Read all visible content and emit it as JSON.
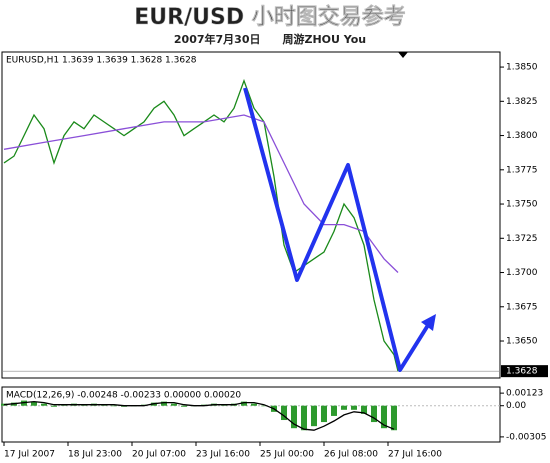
{
  "title": "EUR/USD 小时图交易参考",
  "subtitle": "2007年7月30日　　周游ZHOU You",
  "chart_data": [
    {
      "type": "line",
      "label": "EURUSD,H1  1.3639 1.3639 1.3628 1.3628",
      "current_price": 1.3628,
      "xlim": [
        -1,
        248
      ],
      "ylim": [
        1.3623,
        1.3861
      ],
      "xticks": [
        {
          "value": 0,
          "label": "17 Jul 2007"
        },
        {
          "value": 32,
          "label": "18 Jul 23:00"
        },
        {
          "value": 64,
          "label": "20 Jul 07:00"
        },
        {
          "value": 96,
          "label": "23 Jul 16:00"
        },
        {
          "value": 128,
          "label": "25 Jul 00:00"
        },
        {
          "value": 160,
          "label": "26 Jul 08:00"
        },
        {
          "value": 192,
          "label": "27 Jul 16:00"
        }
      ],
      "yticks": [
        {
          "value": 1.385,
          "label": "1.3850"
        },
        1.3825,
        {
          "value": 1.38,
          "label": "1.3800"
        },
        1.3775,
        {
          "value": 1.375,
          "label": "1.3750"
        },
        1.3725,
        {
          "value": 1.37,
          "label": "1.3700"
        },
        1.3675,
        {
          "value": 1.365,
          "label": "1.3650"
        }
      ],
      "series": [
        {
          "color": "#1a8a1a",
          "style": "line",
          "x": [
            0,
            5,
            10,
            15,
            20,
            25,
            30,
            35,
            40,
            45,
            50,
            55,
            60,
            65,
            70,
            75,
            80,
            85,
            90,
            95,
            100,
            105,
            110,
            115,
            120,
            125,
            130,
            135,
            140,
            145,
            150,
            155,
            160,
            165,
            170,
            175,
            180,
            185,
            190,
            195,
            197
          ],
          "values": [
            1.378,
            1.3785,
            1.38,
            1.3815,
            1.3805,
            1.378,
            1.38,
            1.381,
            1.3805,
            1.3815,
            1.381,
            1.3805,
            1.38,
            1.3805,
            1.381,
            1.382,
            1.3825,
            1.3815,
            1.38,
            1.3805,
            1.381,
            1.3815,
            1.381,
            1.382,
            1.384,
            1.382,
            1.381,
            1.377,
            1.372,
            1.37,
            1.3705,
            1.371,
            1.3715,
            1.373,
            1.375,
            1.374,
            1.372,
            1.368,
            1.365,
            1.364,
            1.3628
          ]
        },
        {
          "color": "#8a4fd8",
          "style": "line",
          "x": [
            0,
            20,
            40,
            60,
            80,
            100,
            120,
            130,
            140,
            150,
            160,
            170,
            180,
            190,
            197
          ],
          "values": [
            1.379,
            1.3795,
            1.38,
            1.3805,
            1.381,
            1.381,
            1.3815,
            1.381,
            1.378,
            1.375,
            1.3735,
            1.3735,
            1.373,
            1.371,
            1.37
          ]
        }
      ]
    },
    {
      "type": "macd",
      "label": "MACD(12,26,9) -0.00248 -0.00233 0.00000 0.00020",
      "xlim": [
        -1,
        248
      ],
      "ylim": [
        -0.00355,
        0.00183
      ],
      "yticks": [
        0.00123,
        {
          "value": 0,
          "label": "0.00"
        },
        -0.00305
      ],
      "series": [
        {
          "color": "#2e9a2e",
          "style": "bar",
          "x": [
            0,
            5,
            10,
            15,
            20,
            25,
            30,
            35,
            40,
            45,
            50,
            55,
            60,
            65,
            70,
            75,
            80,
            85,
            90,
            95,
            100,
            105,
            110,
            115,
            120,
            125,
            130,
            135,
            140,
            145,
            150,
            155,
            160,
            165,
            170,
            175,
            180,
            185,
            190,
            195
          ],
          "values": [
            0.0002,
            0.0003,
            0.0005,
            0.0004,
            0.0002,
            -0.0001,
            0.0001,
            0.0002,
            0.0001,
            0.0002,
            0.0001,
            0,
            -0.0001,
            0,
            0.0001,
            0.0003,
            0.0004,
            0.0002,
            -0.0001,
            0,
            0.0001,
            0.0002,
            0.0001,
            0.0002,
            0.0004,
            0.0002,
            0,
            -0.0006,
            -0.0014,
            -0.0022,
            -0.0024,
            -0.002,
            -0.0016,
            -0.001,
            -0.0004,
            -0.0004,
            -0.0008,
            -0.0016,
            -0.0022,
            -0.0024
          ]
        },
        {
          "color": "#000000",
          "style": "line",
          "x": [
            0,
            5,
            10,
            15,
            20,
            25,
            30,
            35,
            40,
            45,
            50,
            55,
            60,
            65,
            70,
            75,
            80,
            85,
            90,
            95,
            100,
            105,
            110,
            115,
            120,
            125,
            130,
            135,
            140,
            145,
            150,
            155,
            160,
            165,
            170,
            175,
            180,
            185,
            190,
            195
          ],
          "values": [
            0.0001,
            0.0002,
            0.0003,
            0.0004,
            0.0003,
            0.0001,
            0.0001,
            0.0001,
            0.0001,
            0.0001,
            0.0001,
            0.0001,
            0,
            0,
            0,
            0.0002,
            0.0003,
            0.0003,
            0.0001,
            0,
            0,
            0.0001,
            0.0001,
            0.0001,
            0.0003,
            0.0003,
            0.0001,
            -0.0003,
            -0.001,
            -0.0018,
            -0.0023,
            -0.0024,
            -0.002,
            -0.0015,
            -0.0009,
            -0.0006,
            -0.0007,
            -0.0012,
            -0.0019,
            -0.0023
          ]
        }
      ]
    }
  ]
}
